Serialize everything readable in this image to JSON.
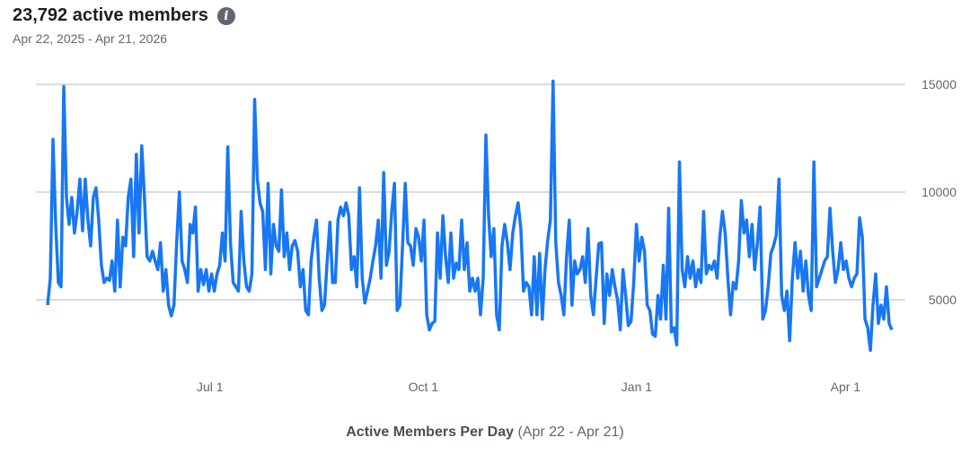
{
  "header": {
    "title": "23,792 active members",
    "info_icon": "info-icon",
    "date_range": "Apr 22, 2025 - Apr 21, 2026"
  },
  "footer": {
    "label": "Active Members Per Day",
    "range": "(Apr 22 - Apr 21)"
  },
  "chart_data": {
    "type": "line",
    "title": "Active Members Per Day",
    "xlabel": "",
    "ylabel": "",
    "x_range": [
      "2025-04-22",
      "2026-04-21"
    ],
    "x_ticks": [
      {
        "date": "2025-07-01",
        "label": "Jul 1"
      },
      {
        "date": "2025-10-01",
        "label": "Oct 1"
      },
      {
        "date": "2026-01-01",
        "label": "Jan 1"
      },
      {
        "date": "2026-04-01",
        "label": "Apr 1"
      }
    ],
    "y_ticks": [
      5000,
      10000,
      15000
    ],
    "y_axis_side": "right",
    "grid": true,
    "color": "#1877f2",
    "series": [
      {
        "values": [
          4750,
          6000,
          12450,
          8500,
          5800,
          5600,
          14900,
          9750,
          8500,
          9750,
          8100,
          9100,
          10600,
          8200,
          10600,
          8700,
          7500,
          9750,
          10200,
          8700,
          6600,
          5800,
          6000,
          5900,
          6800,
          5400,
          8700,
          5600,
          7900,
          7500,
          9750,
          10600,
          7000,
          11750,
          8100,
          12150,
          9750,
          7000,
          6800,
          7250,
          6800,
          6400,
          7650,
          5400,
          6400,
          4750,
          4250,
          4750,
          7650,
          10000,
          6800,
          6400,
          5800,
          8500,
          8100,
          9300,
          5400,
          6400,
          5700,
          6400,
          5400,
          6200,
          5400,
          6200,
          6600,
          8100,
          6800,
          12100,
          7650,
          5800,
          5600,
          5400,
          9100,
          6800,
          5600,
          5400,
          6200,
          14300,
          10600,
          9500,
          9100,
          6400,
          10400,
          6200,
          8500,
          7500,
          7250,
          10100,
          7000,
          8100,
          6400,
          7500,
          7750,
          7250,
          5600,
          6400,
          4500,
          4300,
          6800,
          7900,
          8700,
          6000,
          4500,
          4750,
          6800,
          8600,
          5800,
          5800,
          8700,
          9300,
          8900,
          9500,
          8900,
          6400,
          7000,
          5600,
          10200,
          6000,
          4850,
          5400,
          6000,
          6800,
          7500,
          8700,
          6000,
          10900,
          6600,
          7250,
          9100,
          10400,
          4500,
          4750,
          7500,
          10400,
          7650,
          7500,
          6600,
          8300,
          7900,
          6800,
          8700,
          4300,
          3600,
          3900,
          4000,
          8100,
          6000,
          8900,
          7000,
          5800,
          8100,
          6000,
          6700,
          6400,
          8700,
          6400,
          7650,
          5400,
          6000,
          5400,
          6000,
          4300,
          6000,
          12650,
          8900,
          7000,
          8300,
          4300,
          3600,
          7500,
          8500,
          7650,
          6400,
          8100,
          8900,
          9500,
          8300,
          5400,
          5800,
          5600,
          4300,
          7000,
          4300,
          7150,
          4100,
          6400,
          7750,
          8700,
          15150,
          7650,
          5800,
          5200,
          4300,
          7000,
          8700,
          4750,
          6800,
          6200,
          6400,
          7000,
          5800,
          8300,
          5200,
          4300,
          6000,
          7600,
          7650,
          3900,
          6200,
          5200,
          6400,
          5600,
          5000,
          3600,
          6400,
          5200,
          3800,
          4000,
          5800,
          8500,
          6800,
          7900,
          7250,
          4750,
          4500,
          3400,
          3300,
          5200,
          4100,
          6600,
          4100,
          9250,
          3500,
          3700,
          2900,
          11400,
          6400,
          5600,
          7000,
          6000,
          6800,
          5600,
          6400,
          5800,
          9100,
          6200,
          6600,
          6400,
          6800,
          6000,
          7900,
          9100,
          8100,
          6000,
          4300,
          5800,
          5500,
          6800,
          9600,
          8100,
          8700,
          7000,
          8500,
          6400,
          7650,
          9300,
          4100,
          4500,
          5600,
          7150,
          7500,
          8000,
          10600,
          5200,
          4500,
          5400,
          3100,
          6000,
          7650,
          6000,
          7250,
          5400,
          6800,
          5200,
          4500,
          11400,
          5600,
          6000,
          6400,
          6800,
          7000,
          9250,
          7250,
          5800,
          6400,
          7650,
          6400,
          6800,
          6000,
          5600,
          6000,
          6200,
          8800,
          7900,
          4100,
          3700,
          2650,
          4750,
          6200,
          3900,
          4750,
          4100,
          5600,
          3900,
          3600
        ]
      }
    ]
  }
}
